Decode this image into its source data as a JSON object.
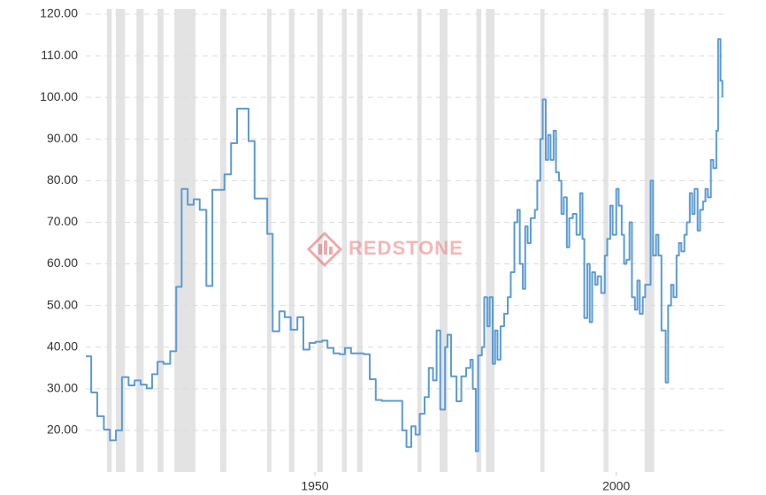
{
  "chart_data": {
    "type": "line",
    "watermark": "REDSTONE",
    "color": "#5b9bd5",
    "recession_color": "#e3e3e3",
    "drawstyle": "steps-post",
    "grid": true,
    "xlim": [
      1912,
      2017.8
    ],
    "ylim": [
      10,
      120
    ],
    "xticks": [
      1950,
      2000
    ],
    "yticks": [
      {
        "value": 20,
        "label": "20.00"
      },
      {
        "value": 30,
        "label": "30.00"
      },
      {
        "value": 40,
        "label": "40.00"
      },
      {
        "value": 50,
        "label": "50.00"
      },
      {
        "value": 60,
        "label": "60.00"
      },
      {
        "value": 70,
        "label": "70.00"
      },
      {
        "value": 80,
        "label": "80.00"
      },
      {
        "value": 90,
        "label": "90.00"
      },
      {
        "value": 100,
        "label": "100.00"
      },
      {
        "value": 110,
        "label": "110.00"
      },
      {
        "value": 120,
        "label": "120.00"
      }
    ],
    "recessions": [
      [
        1915.5,
        1916.3
      ],
      [
        1917.0,
        1918.5
      ],
      [
        1920.4,
        1921.6
      ],
      [
        1923.9,
        1924.9
      ],
      [
        1926.7,
        1930.2
      ],
      [
        1934.3,
        1935.3
      ],
      [
        1942.1,
        1942.8
      ],
      [
        1945.7,
        1946.6
      ],
      [
        1950.4,
        1951.3
      ],
      [
        1954.5,
        1955.3
      ],
      [
        1957.0,
        1957.9
      ],
      [
        1967.0,
        1967.7
      ],
      [
        1970.7,
        1972.0
      ],
      [
        1976.8,
        1977.6
      ],
      [
        1978.4,
        1979.8
      ],
      [
        1987.4,
        1988.1
      ],
      [
        1997.9,
        1998.7
      ],
      [
        2004.7,
        2006.3
      ]
    ],
    "x": [
      1912.0,
      1912.9,
      1913.9,
      1915.0,
      1916.0,
      1917.0,
      1918.0,
      1919.1,
      1920.1,
      1921.1,
      1922.1,
      1923.0,
      1923.9,
      1924.9,
      1926.0,
      1927.0,
      1927.9,
      1928.9,
      1929.9,
      1930.9,
      1932.0,
      1933.0,
      1935.0,
      1936.1,
      1937.1,
      1939.0,
      1940.0,
      1942.1,
      1943.0,
      1944.1,
      1945.0,
      1946.0,
      1947.1,
      1948.1,
      1949.1,
      1950.1,
      1951.2,
      1952.1,
      1953.1,
      1954.1,
      1955.0,
      1956.0,
      1958.1,
      1959.1,
      1960.1,
      1961.1,
      1964.5,
      1965.2,
      1966.0,
      1966.7,
      1967.4,
      1968.2,
      1968.9,
      1969.6,
      1970.2,
      1970.8,
      1971.6,
      1972.0,
      1972.6,
      1973.5,
      1974.3,
      1975.1,
      1975.8,
      1976.2,
      1976.7,
      1977.1,
      1977.7,
      1978.1,
      1978.6,
      1979.0,
      1979.5,
      1979.9,
      1980.3,
      1980.8,
      1981.4,
      1982.0,
      1982.5,
      1983.1,
      1983.6,
      1984.0,
      1984.5,
      1984.9,
      1985.3,
      1985.8,
      1986.5,
      1986.9,
      1987.4,
      1987.8,
      1988.3,
      1988.7,
      1989.1,
      1989.6,
      1990.0,
      1990.5,
      1990.9,
      1991.3,
      1991.8,
      1992.2,
      1992.8,
      1993.4,
      1994.0,
      1994.4,
      1994.7,
      1995.2,
      1995.6,
      1996.0,
      1996.5,
      1996.9,
      1997.5,
      1998.1,
      1998.5,
      1999.0,
      1999.4,
      2000.0,
      2000.4,
      2000.9,
      2001.3,
      2001.7,
      2002.2,
      2002.6,
      2003.1,
      2003.5,
      2003.9,
      2004.4,
      2004.8,
      2005.3,
      2005.7,
      2006.1,
      2006.6,
      2007.0,
      2007.5,
      2007.9,
      2008.2,
      2008.6,
      2009.1,
      2009.5,
      2010.0,
      2010.4,
      2010.8,
      2011.3,
      2011.7,
      2012.2,
      2012.6,
      2013.0,
      2013.5,
      2013.9,
      2014.4,
      2014.8,
      2015.2,
      2015.7,
      2016.1,
      2016.6,
      2016.9,
      2017.3,
      2017.6
    ],
    "values": [
      37.8,
      29.1,
      23.4,
      20.2,
      17.6,
      20.0,
      32.8,
      30.8,
      32.0,
      31.0,
      30.1,
      33.5,
      36.5,
      36.0,
      39.0,
      54.5,
      78.0,
      74.2,
      75.5,
      73.0,
      54.7,
      77.8,
      81.5,
      89.0,
      97.3,
      89.5,
      75.7,
      67.2,
      43.8,
      48.6,
      47.2,
      44.2,
      47.2,
      39.4,
      41.0,
      41.3,
      41.6,
      39.8,
      38.5,
      38.3,
      39.8,
      38.5,
      38.3,
      32.3,
      27.3,
      27.1,
      20,
      16,
      21,
      19,
      24,
      28,
      35,
      32,
      44,
      25,
      40,
      43,
      33,
      27,
      33,
      35,
      37,
      30,
      15,
      38,
      40,
      52,
      45,
      52,
      36,
      44,
      37,
      45,
      48,
      52,
      58,
      70,
      73,
      60,
      54,
      69,
      65,
      71,
      73,
      80,
      90,
      99.5,
      85,
      91,
      85,
      92,
      82,
      80,
      72,
      76,
      64,
      71,
      72,
      67,
      77,
      66,
      47,
      60,
      46,
      58,
      55,
      57,
      53,
      62,
      66,
      74,
      67,
      78,
      74,
      67,
      60,
      61,
      70,
      52,
      49,
      56,
      48,
      52,
      55,
      55,
      80,
      62,
      67,
      62,
      44,
      44,
      31.5,
      50,
      55,
      52,
      62,
      65,
      63,
      67,
      70,
      77,
      72,
      78,
      68,
      73,
      75,
      78,
      76,
      85,
      83,
      92,
      114,
      104,
      100
    ]
  }
}
